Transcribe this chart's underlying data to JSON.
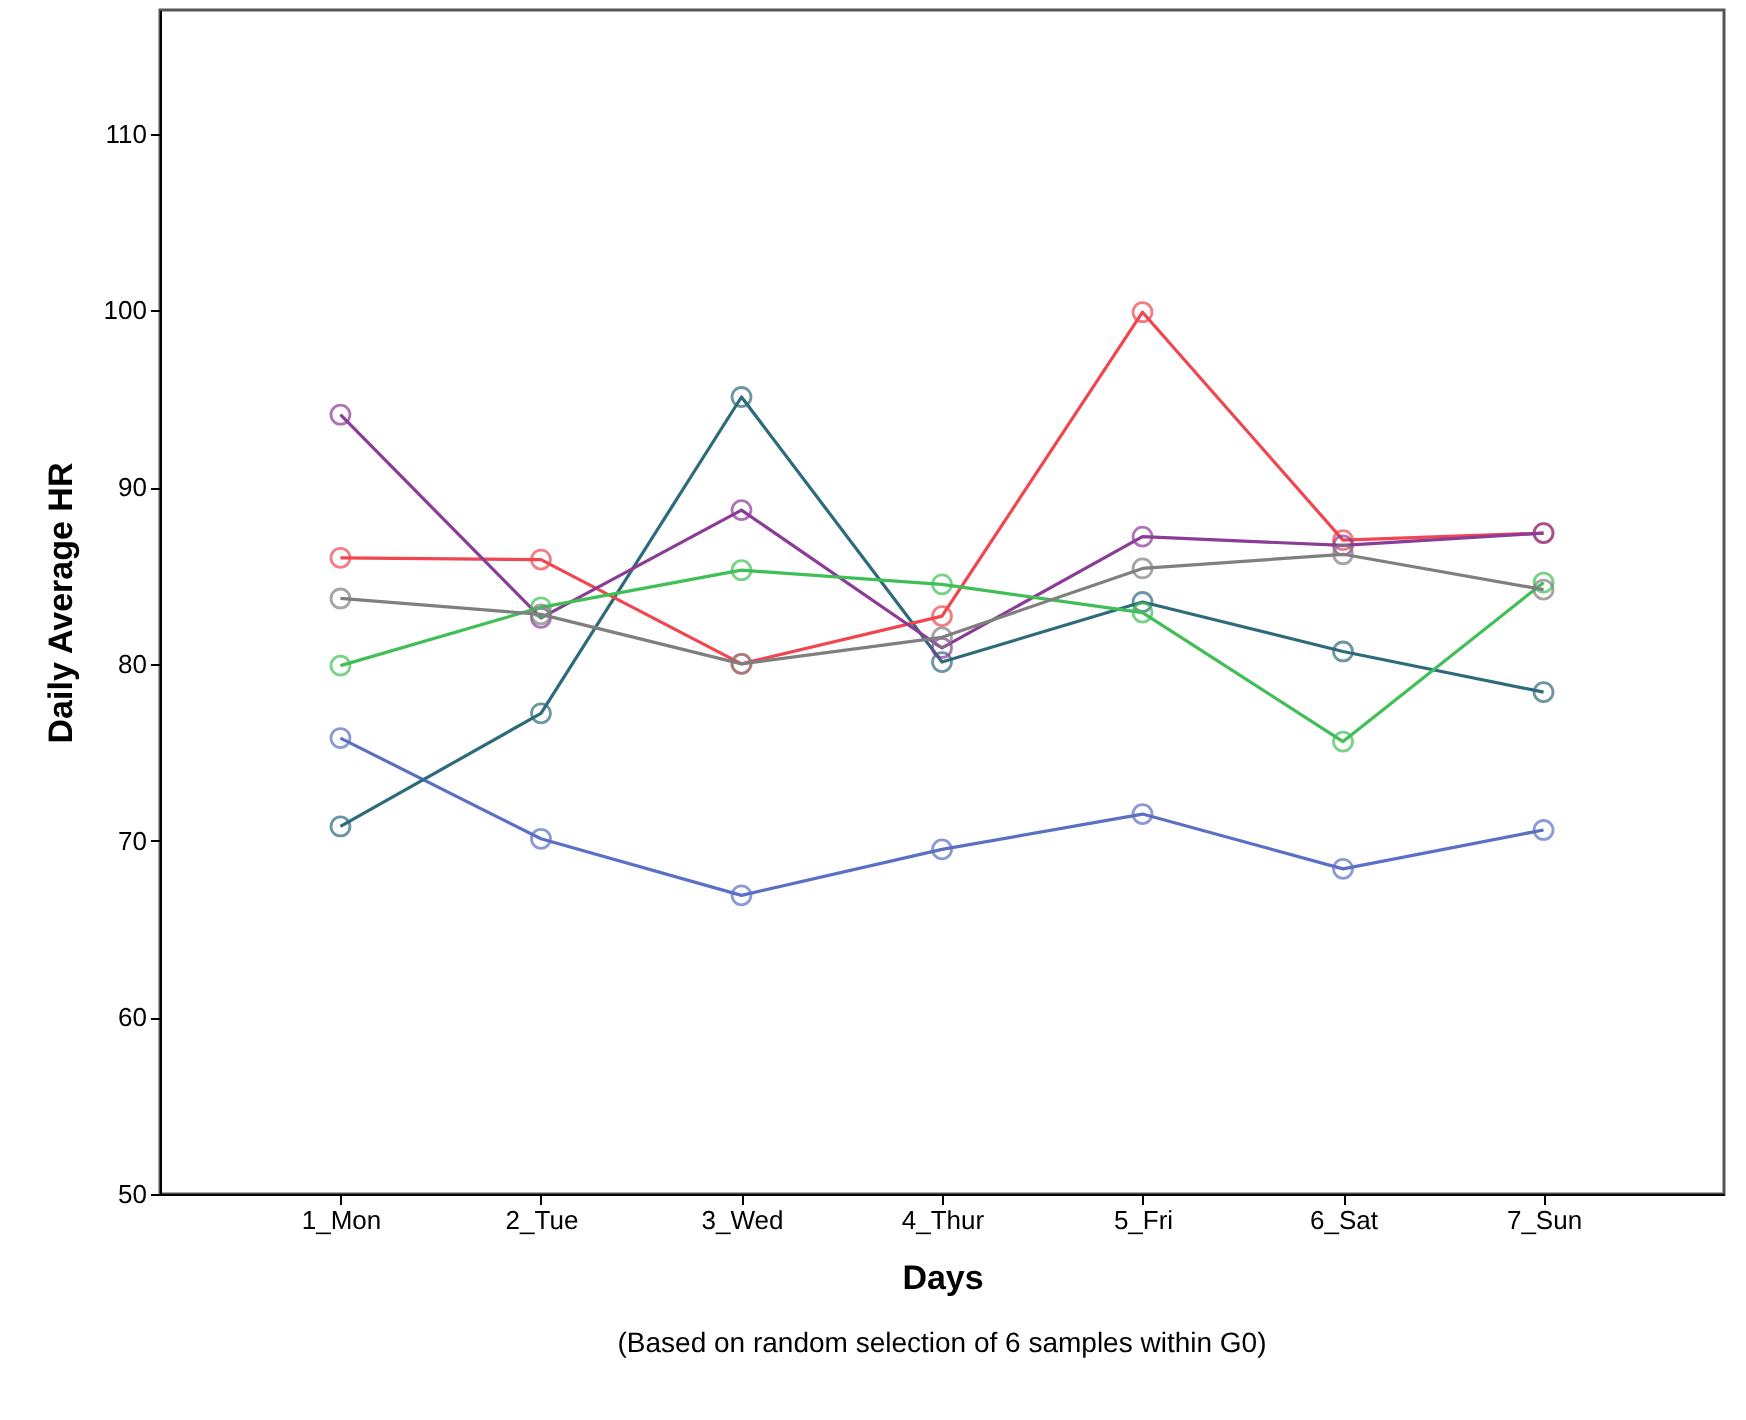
{
  "chart_data": {
    "type": "line",
    "xlabel": "Days",
    "ylabel": "Daily Average HR",
    "annotations": [
      "(Based on random selection of 6 samples within G0)"
    ],
    "categories": [
      "1_Mon",
      "2_Tue",
      "3_Wed",
      "4_Thur",
      "5_Fri",
      "6_Sat",
      "7_Sun"
    ],
    "series": [
      {
        "color": "#5b6fc4",
        "values": [
          75.8,
          70.1,
          66.9,
          69.5,
          71.5,
          68.4,
          70.6
        ]
      },
      {
        "color": "#2e6b7a",
        "values": [
          70.8,
          77.2,
          95.1,
          80.1,
          83.5,
          80.7,
          78.4
        ]
      },
      {
        "color": "#f0464f",
        "values": [
          86.0,
          85.9,
          80.0,
          82.7,
          99.9,
          87.0,
          87.4
        ]
      },
      {
        "color": "#8a3c96",
        "values": [
          94.1,
          82.6,
          88.7,
          80.9,
          87.2,
          86.7,
          87.4
        ]
      },
      {
        "color": "#3fbf55",
        "values": [
          79.9,
          83.2,
          85.3,
          84.5,
          82.9,
          75.6,
          84.6
        ]
      },
      {
        "color": "#7f7f7f",
        "values": [
          83.7,
          82.8,
          80.0,
          81.5,
          85.4,
          86.2,
          84.2
        ]
      }
    ],
    "ylim": [
      50,
      117
    ],
    "yticks": [
      50,
      60,
      70,
      80,
      90,
      100,
      110
    ],
    "grid": false,
    "marker": "circle",
    "line_style": "solid"
  }
}
